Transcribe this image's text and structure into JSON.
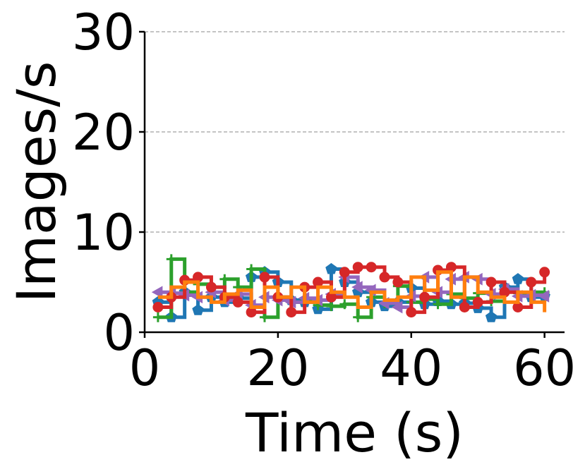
{
  "chart_data": {
    "type": "line",
    "xlabel": "Time (s)",
    "ylabel": "Images/s",
    "xlim": [
      0,
      63
    ],
    "ylim": [
      0,
      30
    ],
    "xticks": [
      0,
      20,
      40,
      60
    ],
    "yticks": [
      0,
      10,
      20,
      30
    ],
    "grid": "horizontal dashed",
    "step": true,
    "series": [
      {
        "color": "#1f77b4",
        "marker": "pentagon",
        "x": [
          2,
          4,
          6,
          8,
          10,
          12,
          14,
          16,
          18,
          20,
          22,
          24,
          26,
          28,
          30,
          32,
          34,
          36,
          38,
          40,
          42,
          44,
          46,
          48,
          50,
          52,
          54,
          56,
          58,
          60
        ],
        "y": [
          3.0,
          1.5,
          4.0,
          2.2,
          3.5,
          3.0,
          3.4,
          5.5,
          6.0,
          5.0,
          3.2,
          3.0,
          2.3,
          6.3,
          5.0,
          4.0,
          3.0,
          2.6,
          3.0,
          4.4,
          2.8,
          3.1,
          2.8,
          2.9,
          2.4,
          1.5,
          4.5,
          5.3,
          3.5,
          3.6
        ]
      },
      {
        "color": "#2ca02c",
        "marker": "plus",
        "x": [
          2,
          4,
          6,
          8,
          10,
          12,
          14,
          16,
          18,
          20,
          22,
          24,
          26,
          28,
          30,
          32,
          34,
          36,
          38,
          40,
          42,
          44,
          46,
          48,
          50,
          52,
          54,
          56,
          58,
          60
        ],
        "y": [
          1.5,
          7.3,
          4.0,
          4.8,
          4.5,
          5.3,
          4.5,
          6.3,
          1.5,
          3.5,
          3.0,
          3.3,
          2.7,
          2.6,
          2.8,
          1.5,
          3.5,
          2.9,
          4.6,
          3.0,
          3.3,
          2.8,
          3.8,
          3.4,
          3.9,
          3.1,
          4.1,
          3.9,
          4.0,
          4.0
        ]
      },
      {
        "color": "#9467bd",
        "marker": "triangle-left",
        "x": [
          2,
          4,
          6,
          8,
          10,
          12,
          14,
          16,
          18,
          20,
          22,
          24,
          26,
          28,
          30,
          32,
          34,
          36,
          38,
          40,
          42,
          44,
          46,
          48,
          50,
          52,
          54,
          56,
          58,
          60
        ],
        "y": [
          4.0,
          3.9,
          3.7,
          3.5,
          4.0,
          3.2,
          3.8,
          2.7,
          3.5,
          3.2,
          3.0,
          3.4,
          3.2,
          3.8,
          5.5,
          4.5,
          4.2,
          2.9,
          2.5,
          3.6,
          5.5,
          4.0,
          5.3,
          5.5,
          5.3,
          3.8,
          4.3,
          3.6,
          3.7,
          3.6
        ]
      },
      {
        "color": "#d62728",
        "marker": "circle",
        "x": [
          2,
          4,
          6,
          8,
          10,
          12,
          14,
          16,
          18,
          20,
          22,
          24,
          26,
          28,
          30,
          32,
          34,
          36,
          38,
          40,
          42,
          44,
          46,
          48,
          50,
          52,
          54,
          56,
          58,
          60
        ],
        "y": [
          2.5,
          3.5,
          5.2,
          5.5,
          4.5,
          3.5,
          3.0,
          2.0,
          5.5,
          3.5,
          2.0,
          4.5,
          5.0,
          3.5,
          6.0,
          6.5,
          6.5,
          5.5,
          5.0,
          2.0,
          3.5,
          6.2,
          6.5,
          2.5,
          3.0,
          5.0,
          4.0,
          2.5,
          5.0,
          6.0
        ]
      },
      {
        "color": "#ff7f0e",
        "marker": "none",
        "x": [
          2,
          4,
          6,
          8,
          10,
          12,
          14,
          16,
          18,
          20,
          22,
          24,
          26,
          28,
          30,
          32,
          34,
          36,
          38,
          40,
          42,
          44,
          46,
          48,
          50,
          52,
          54,
          56,
          58,
          60
        ],
        "y": [
          3.5,
          4.5,
          5.0,
          3.5,
          3.0,
          3.8,
          4.2,
          2.5,
          4.5,
          3.5,
          4.5,
          3.0,
          4.5,
          4.0,
          3.5,
          2.5,
          4.0,
          3.2,
          3.5,
          5.5,
          4.2,
          6.0,
          3.5,
          5.5,
          4.0,
          3.5,
          3.0,
          4.0,
          3.0,
          2.0
        ]
      }
    ]
  }
}
